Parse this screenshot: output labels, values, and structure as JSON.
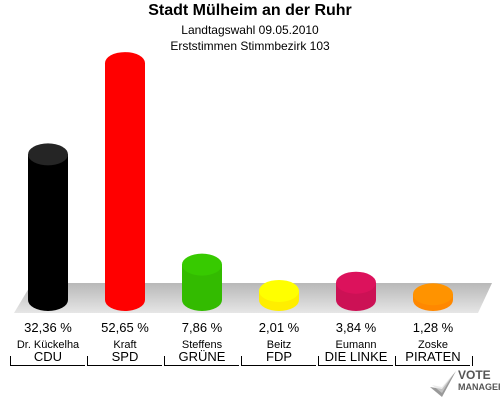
{
  "header": {
    "title": "Stadt Mülheim an der Ruhr",
    "subtitle1": "Landtagswahl 09.05.2010",
    "subtitle2": "Erststimmen Stimmbezirk 103"
  },
  "chart_data": {
    "type": "bar",
    "title": "Stadt Mülheim an der Ruhr",
    "subtitle": "Landtagswahl 09.05.2010 — Erststimmen Stimmbezirk 103",
    "categories": [
      "CDU",
      "SPD",
      "GRÜNE",
      "FDP",
      "DIE LINKE",
      "PIRATEN"
    ],
    "candidates": [
      "Dr. Kückelha",
      "Kraft",
      "Steffens",
      "Beitz",
      "Eumann",
      "Zoske"
    ],
    "values": [
      32.36,
      52.65,
      7.86,
      2.01,
      3.84,
      1.28
    ],
    "value_labels": [
      "32,36 %",
      "52,65 %",
      "7,86 %",
      "2,01 %",
      "3,84 %",
      "1,28 %"
    ],
    "colors": [
      "#000000",
      "#ff0000",
      "#33bb00",
      "#ffee00",
      "#cc1155",
      "#ff8800"
    ],
    "xlabel": "",
    "ylabel": "",
    "ylim": [
      0,
      55
    ],
    "grid": false,
    "legend": "none"
  },
  "logo": {
    "line1": "VOTE",
    "line2": "MANAGER"
  }
}
